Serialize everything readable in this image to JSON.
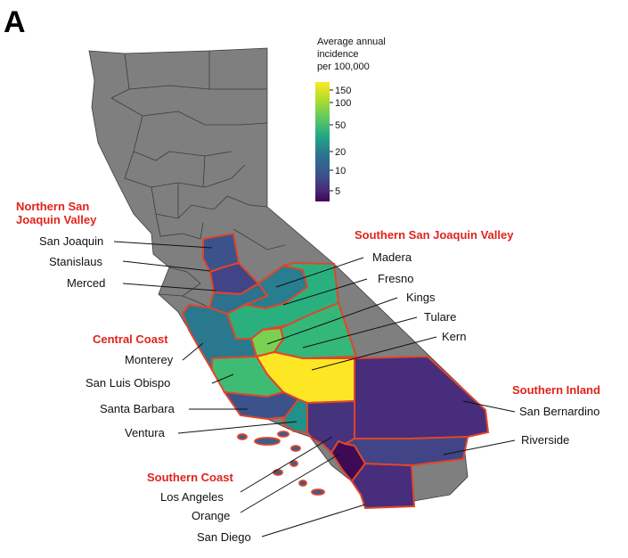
{
  "panel_letter": "A",
  "legend": {
    "title_lines": [
      "Average annual",
      "incidence",
      "per 100,000"
    ],
    "ticks": [
      "150",
      "100",
      "50",
      "20",
      "10",
      "5"
    ],
    "colors": [
      "#fde725",
      "#b5de2b",
      "#5ec962",
      "#21a585",
      "#2c718e",
      "#3b528b",
      "#472d7b",
      "#440154"
    ]
  },
  "regions": {
    "northern_sjv": [
      "Northern San",
      "Joaquin Valley"
    ],
    "southern_sjv": "Southern San Joaquin Valley",
    "central_coast": "Central Coast",
    "southern_inland": "Southern Inland",
    "southern_coast": "Southern Coast"
  },
  "counties": {
    "san_joaquin": {
      "label": "San Joaquin",
      "incidence": 8,
      "color": "#3b528b"
    },
    "stanislaus": {
      "label": "Stanislaus",
      "incidence": 7,
      "color": "#414487"
    },
    "merced": {
      "label": "Merced",
      "incidence": 16,
      "color": "#2c718e"
    },
    "madera": {
      "label": "Madera",
      "incidence": 20,
      "color": "#287d8e"
    },
    "fresno": {
      "label": "Fresno",
      "incidence": 40,
      "color": "#2ab07f"
    },
    "kings": {
      "label": "Kings",
      "incidence": 90,
      "color": "#7ad151"
    },
    "tulare": {
      "label": "Tulare",
      "incidence": 45,
      "color": "#35b779"
    },
    "kern": {
      "label": "Kern",
      "incidence": 150,
      "color": "#fde725"
    },
    "monterey": {
      "label": "Monterey",
      "incidence": 15,
      "color": "#2a788e"
    },
    "san_luis_obispo": {
      "label": "San Luis Obispo",
      "incidence": 45,
      "color": "#3fbc73"
    },
    "santa_barbara": {
      "label": "Santa Barbara",
      "incidence": 9,
      "color": "#3b528b"
    },
    "ventura": {
      "label": "Ventura",
      "incidence": 20,
      "color": "#21918c"
    },
    "los_angeles": {
      "label": "Los Angeles",
      "incidence": 4,
      "color": "#46337e"
    },
    "orange": {
      "label": "Orange",
      "incidence": 3,
      "color": "#3e0a56"
    },
    "san_diego": {
      "label": "San Diego",
      "incidence": 4,
      "color": "#472d7b"
    },
    "san_bernardino": {
      "label": "San Bernardino",
      "incidence": 4,
      "color": "#472d7b"
    },
    "riverside": {
      "label": "Riverside",
      "incidence": 7,
      "color": "#414487"
    }
  }
}
